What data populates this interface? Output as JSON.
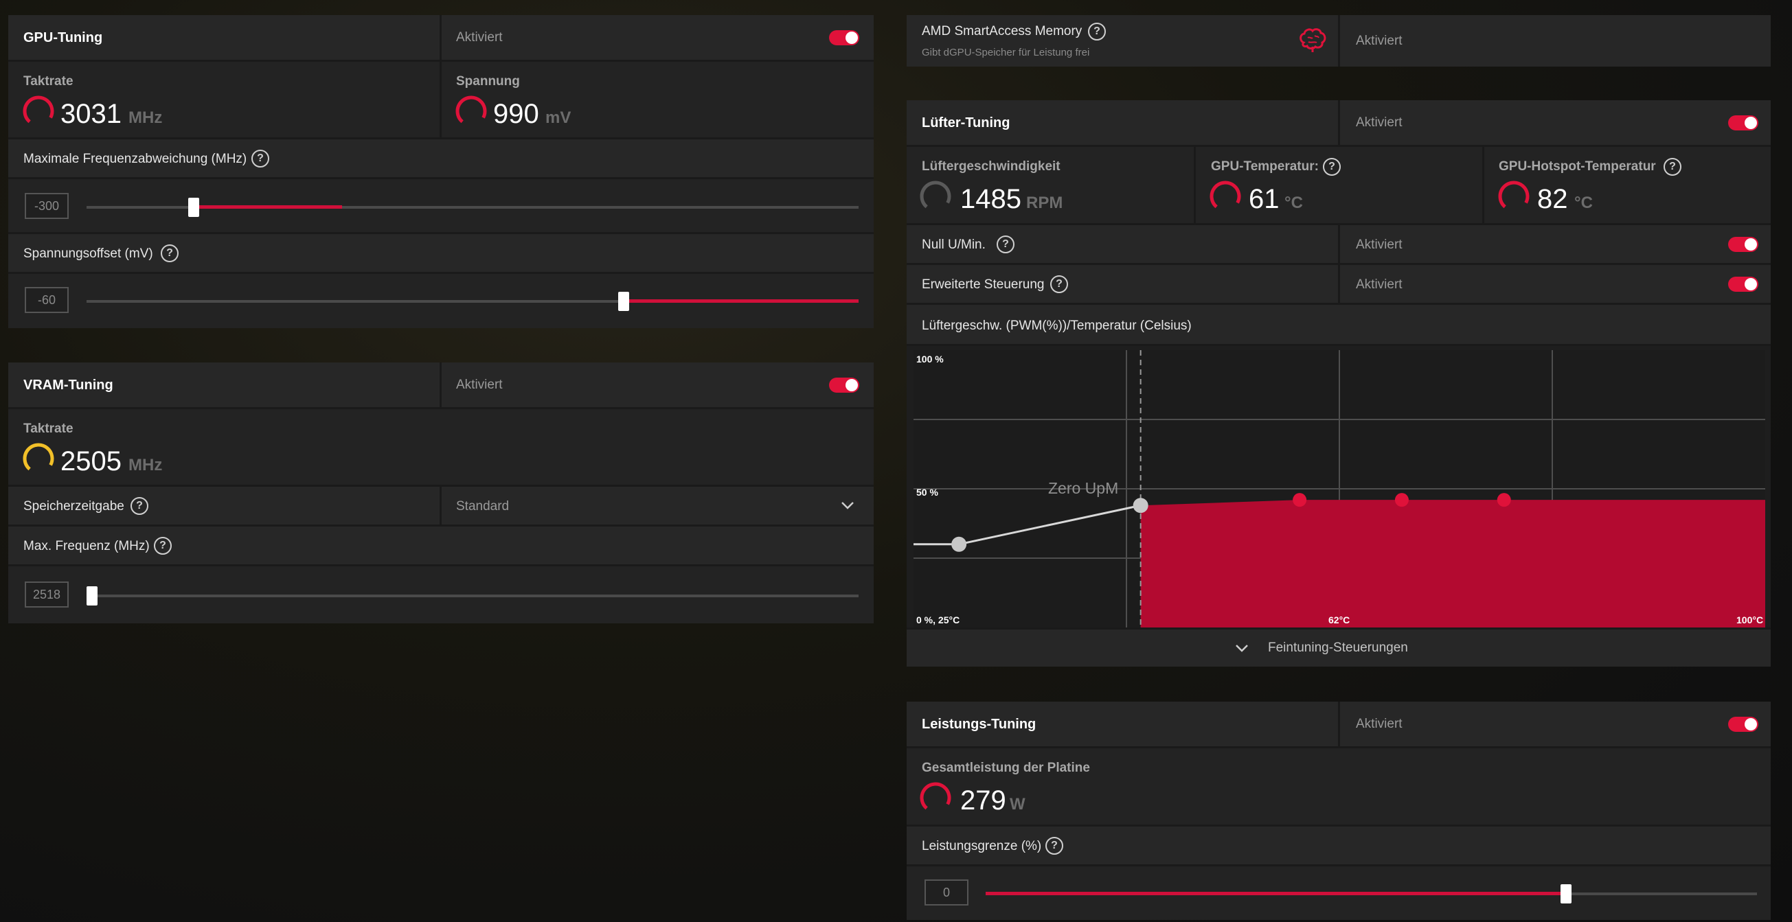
{
  "colors": {
    "accent": "#e0123a",
    "panel": "#252525",
    "gauge_yellow": "#f2c029",
    "chart_fill": "#b30a30",
    "point_grey": "#c8c8c8"
  },
  "gpu_tuning": {
    "title": "GPU-Tuning",
    "status": "Aktiviert",
    "enabled": true,
    "clock": {
      "label": "Taktrate",
      "value": "3031",
      "unit": "MHz"
    },
    "voltage": {
      "label": "Spannung",
      "value": "990",
      "unit": "mV"
    },
    "max_freq_offset": {
      "label": "Maximale Frequenzabweichung (MHz)",
      "value": "-300",
      "level": 0.14
    },
    "voltage_offset": {
      "label": "Spannungsoffset (mV)",
      "value": "-60",
      "level": 0.69
    }
  },
  "vram_tuning": {
    "title": "VRAM-Tuning",
    "status": "Aktiviert",
    "enabled": true,
    "clock": {
      "label": "Taktrate",
      "value": "2505",
      "unit": "MHz"
    },
    "memory_timing": {
      "label": "Speicherzeitgabe",
      "value": "Standard"
    },
    "max_freq": {
      "label": "Max. Frequenz (MHz)",
      "value": "2518",
      "level": 0.0
    }
  },
  "sam": {
    "title": "AMD SmartAccess Memory",
    "subtitle": "Gibt dGPU-Speicher für Leistung frei",
    "status": "Aktiviert",
    "icon": "brain-icon"
  },
  "fan_tuning": {
    "title": "Lüfter-Tuning",
    "status": "Aktiviert",
    "enabled": true,
    "fan_speed": {
      "label": "Lüftergeschwindigkeit",
      "value": "1485",
      "unit": "RPM"
    },
    "gpu_temp": {
      "label": "GPU-Temperatur:",
      "value": "61",
      "unit": "°C"
    },
    "hotspot_temp": {
      "label": "GPU-Hotspot-Temperatur",
      "value": "82",
      "unit": "°C"
    },
    "zero_rpm": {
      "label": "Null U/Min.",
      "status": "Aktiviert",
      "enabled": true
    },
    "advanced": {
      "label": "Erweiterte Steuerung",
      "status": "Aktiviert",
      "enabled": true
    },
    "curve_title": "Lüftergeschw. (PWM(%))/Temperatur (Celsius)",
    "fine_tuning": "Feintuning-Steuerungen"
  },
  "chart_data": {
    "type": "line",
    "ylabel_top": "100 %",
    "ylabel_mid": "50 %",
    "origin_label": "0 %, 25°C",
    "x_mid_label": "62°C",
    "x_max_label": "100°C",
    "annotation": "Zero UpM",
    "xlim": [
      25,
      100
    ],
    "ylim": [
      0,
      100
    ],
    "zero_rpm_threshold": 45,
    "points": [
      {
        "x": 29,
        "y": 30
      },
      {
        "x": 45,
        "y": 44
      },
      {
        "x": 59,
        "y": 46
      },
      {
        "x": 68,
        "y": 46
      },
      {
        "x": 77,
        "y": 46
      }
    ],
    "fill_to": 100
  },
  "power_tuning": {
    "title": "Leistungs-Tuning",
    "status": "Aktiviert",
    "enabled": true,
    "board_power": {
      "label": "Gesamtleistung der Platine",
      "value": "279",
      "unit": "W"
    },
    "power_limit": {
      "label": "Leistungsgrenze (%)",
      "value": "0",
      "level": 0.75
    }
  }
}
